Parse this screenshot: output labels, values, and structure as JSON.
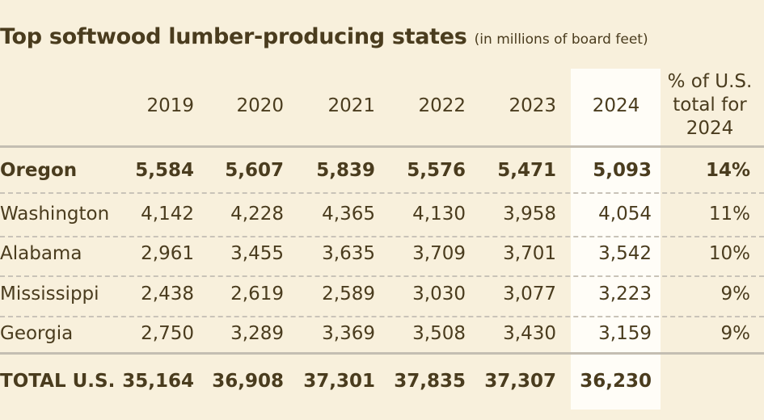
{
  "title": "Top softwood lumber-producing states",
  "subtitle": "(in millions of board feet)",
  "colors": {
    "background": "#f8f0dc",
    "text": "#4a3c1e",
    "highlight_column": "#fffdf7"
  },
  "chart_data": {
    "type": "table",
    "title": "Top softwood lumber-producing states",
    "subtitle": "(in millions of board feet)",
    "columns": [
      "2019",
      "2020",
      "2021",
      "2022",
      "2023",
      "2024",
      "% of U.S. total for 2024"
    ],
    "highlighted_column": "2024",
    "rows": [
      {
        "state": "Oregon",
        "values": [
          "5,584",
          "5,607",
          "5,839",
          "5,576",
          "5,471",
          "5,093"
        ],
        "pct": "14%"
      },
      {
        "state": "Washington",
        "values": [
          "4,142",
          "4,228",
          "4,365",
          "4,130",
          "3,958",
          "4,054"
        ],
        "pct": "11%"
      },
      {
        "state": "Alabama",
        "values": [
          "2,961",
          "3,455",
          "3,635",
          "3,709",
          "3,701",
          "3,542"
        ],
        "pct": "10%"
      },
      {
        "state": "Mississippi",
        "values": [
          "2,438",
          "2,619",
          "2,589",
          "3,030",
          "3,077",
          "3,223"
        ],
        "pct": "9%"
      },
      {
        "state": "Georgia",
        "values": [
          "2,750",
          "3,289",
          "3,369",
          "3,508",
          "3,430",
          "3,159"
        ],
        "pct": "9%"
      }
    ],
    "total": {
      "state": "TOTAL U.S.",
      "values": [
        "35,164",
        "36,908",
        "37,301",
        "37,835",
        "37,307",
        "36,230"
      ],
      "pct": ""
    }
  }
}
